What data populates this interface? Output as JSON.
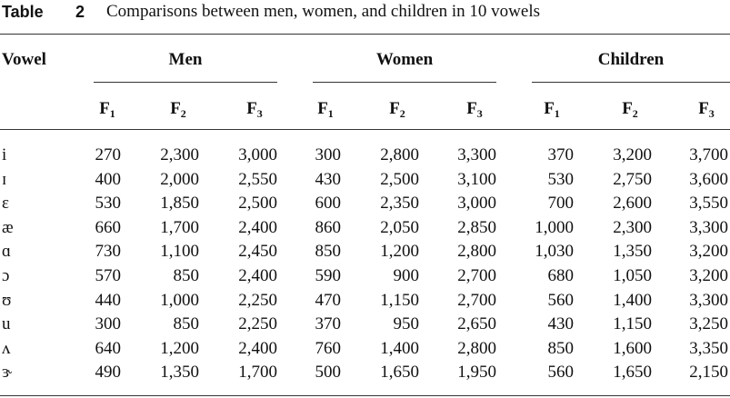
{
  "header": {
    "label": "Table",
    "number": "2",
    "caption": "Comparisons between men, women, and children in 10 vowels"
  },
  "table": {
    "stub_header": "Vowel",
    "groups": [
      "Men",
      "Women",
      "Children"
    ],
    "subheaders": [
      {
        "base": "F",
        "sub": "1"
      },
      {
        "base": "F",
        "sub": "2"
      },
      {
        "base": "F",
        "sub": "3"
      },
      {
        "base": "F",
        "sub": "1"
      },
      {
        "base": "F",
        "sub": "2"
      },
      {
        "base": "F",
        "sub": "3"
      },
      {
        "base": "F",
        "sub": "1"
      },
      {
        "base": "F",
        "sub": "2"
      },
      {
        "base": "F",
        "sub": "3"
      }
    ],
    "rows": [
      [
        "i",
        "270",
        "2,300",
        "3,000",
        "300",
        "2,800",
        "3,300",
        "370",
        "3,200",
        "3,700"
      ],
      [
        "ɪ",
        "400",
        "2,000",
        "2,550",
        "430",
        "2,500",
        "3,100",
        "530",
        "2,750",
        "3,600"
      ],
      [
        "ɛ",
        "530",
        "1,850",
        "2,500",
        "600",
        "2,350",
        "3,000",
        "700",
        "2,600",
        "3,550"
      ],
      [
        "æ",
        "660",
        "1,700",
        "2,400",
        "860",
        "2,050",
        "2,850",
        "1,000",
        "2,300",
        "3,300"
      ],
      [
        "ɑ",
        "730",
        "1,100",
        "2,450",
        "850",
        "1,200",
        "2,800",
        "1,030",
        "1,350",
        "3,200"
      ],
      [
        "ɔ",
        "570",
        "850",
        "2,400",
        "590",
        "900",
        "2,700",
        "680",
        "1,050",
        "3,200"
      ],
      [
        "ʊ",
        "440",
        "1,000",
        "2,250",
        "470",
        "1,150",
        "2,700",
        "560",
        "1,400",
        "3,300"
      ],
      [
        "u",
        "300",
        "850",
        "2,250",
        "370",
        "950",
        "2,650",
        "430",
        "1,150",
        "3,250"
      ],
      [
        "ʌ",
        "640",
        "1,200",
        "2,400",
        "760",
        "1,400",
        "2,800",
        "850",
        "1,600",
        "3,350"
      ],
      [
        "ɝ",
        "490",
        "1,350",
        "1,700",
        "500",
        "1,650",
        "1,950",
        "560",
        "1,650",
        "2,150"
      ]
    ]
  }
}
